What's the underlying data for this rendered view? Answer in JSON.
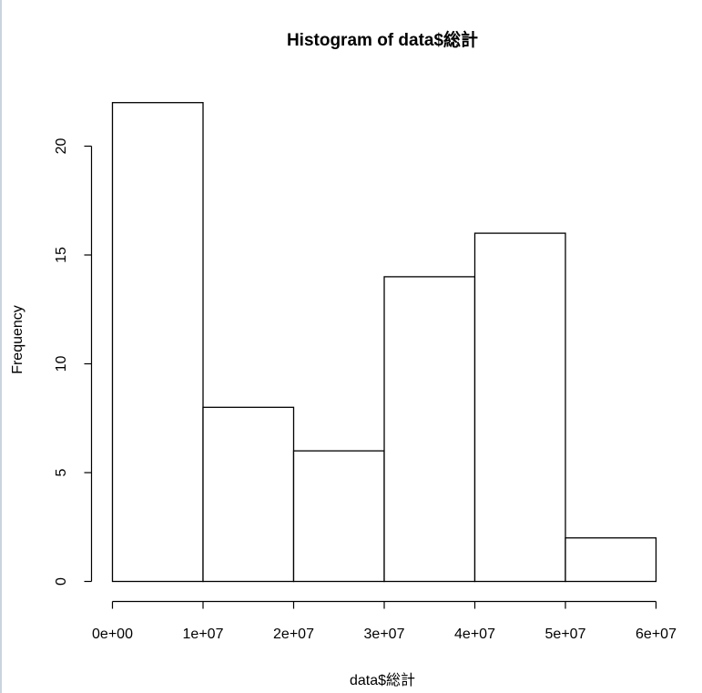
{
  "chart_data": {
    "type": "bar",
    "title": "Histogram of data$総計",
    "xlabel": "data$総計",
    "ylabel": "Frequency",
    "bins": [
      {
        "from": 0,
        "to": 10000000,
        "count": 22
      },
      {
        "from": 10000000,
        "to": 20000000,
        "count": 8
      },
      {
        "from": 20000000,
        "to": 30000000,
        "count": 6
      },
      {
        "from": 30000000,
        "to": 40000000,
        "count": 14
      },
      {
        "from": 40000000,
        "to": 50000000,
        "count": 16
      },
      {
        "from": 50000000,
        "to": 60000000,
        "count": 2
      }
    ],
    "xlim": [
      0,
      60000000
    ],
    "ylim": [
      0,
      22
    ],
    "x_ticks": [
      0,
      10000000,
      20000000,
      30000000,
      40000000,
      50000000,
      60000000
    ],
    "x_tick_labels": [
      "0e+00",
      "1e+07",
      "2e+07",
      "3e+07",
      "4e+07",
      "5e+07",
      "6e+07"
    ],
    "y_ticks": [
      0,
      5,
      10,
      15,
      20
    ],
    "y_tick_labels": [
      "0",
      "5",
      "10",
      "15",
      "20"
    ],
    "grid": false,
    "legend": "none",
    "bar_fill": "#ffffff",
    "bar_stroke": "#000000"
  }
}
